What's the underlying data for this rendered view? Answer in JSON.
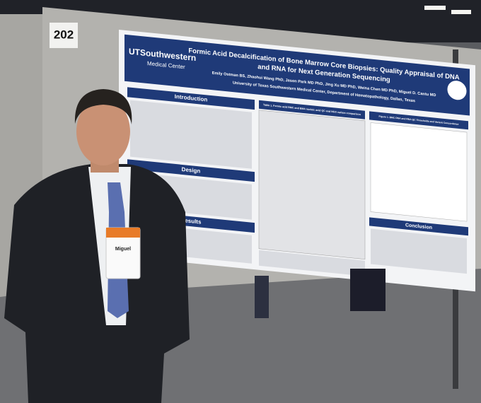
{
  "booth_number": "202",
  "poster": {
    "logo": "UTSouthwestern",
    "logo_sub": "Medical Center",
    "title_lines": [
      "Formic Acid Decalcification of Bone Marrow Core Biopsies:  Quality Appraisal of DNA",
      "and RNA for Next Generation Sequencing"
    ],
    "authors": "Emily Ostman BS, Zhaohui Wang PhD, Jason Park MD PhD, Jing Xu MD PhD, Weina Chen MD PhD, Miguel D. Cantu MD",
    "affiliation": "University of Texas Southwestern Medical Center, Department of Hematopathology, Dallas, Texas",
    "sections": [
      "Introduction",
      "Design",
      "Results",
      "Conclusion"
    ],
    "table_caption": "Table 1. Formic acid BMC and BMA nucleic acid QC and NGS variant comparison",
    "figure_caption": "Figure 1. BMC DNA and RNA QC Thresholds and Variant Concordance"
  },
  "badge": {
    "name": "Miguel"
  }
}
